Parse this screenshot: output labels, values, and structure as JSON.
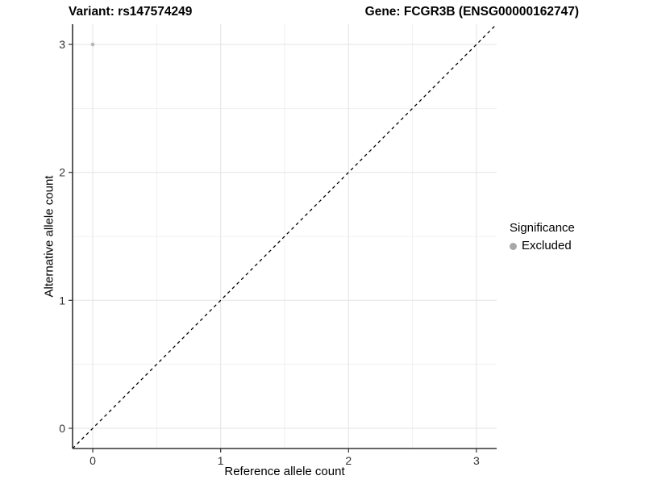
{
  "header": {
    "variant_title": "Variant: rs147574249",
    "gene_title": "Gene: FCGR3B (ENSG00000162747)"
  },
  "chart_data": {
    "type": "scatter",
    "xlabel": "Reference allele count",
    "ylabel": "Alternative allele count",
    "xlim": [
      -0.158,
      3.158
    ],
    "ylim": [
      -0.158,
      3.158
    ],
    "x_ticks": [
      0,
      1,
      2,
      3
    ],
    "y_ticks": [
      0,
      1,
      2,
      3
    ],
    "x_minor_ticks": [
      0.5,
      1.5,
      2.5
    ],
    "y_minor_ticks": [
      0.5,
      1.5,
      2.5
    ],
    "grid": true,
    "points": [
      {
        "x": 0,
        "y": 3,
        "series": "Excluded"
      }
    ],
    "identity_line": {
      "slope": 1,
      "intercept": 0,
      "style": "dashed"
    },
    "legend": {
      "title": "Significance",
      "position": "right",
      "items": [
        {
          "label": "Excluded",
          "color": "#a8a8a8"
        }
      ]
    },
    "colors": {
      "point": "#b8b8b8",
      "grid_major": "#e3e3e3",
      "grid_minor": "#f1f1f1",
      "axis_line": "#333333",
      "tick_label": "#333333",
      "identity_line": "#000000",
      "background": "#ffffff"
    }
  }
}
